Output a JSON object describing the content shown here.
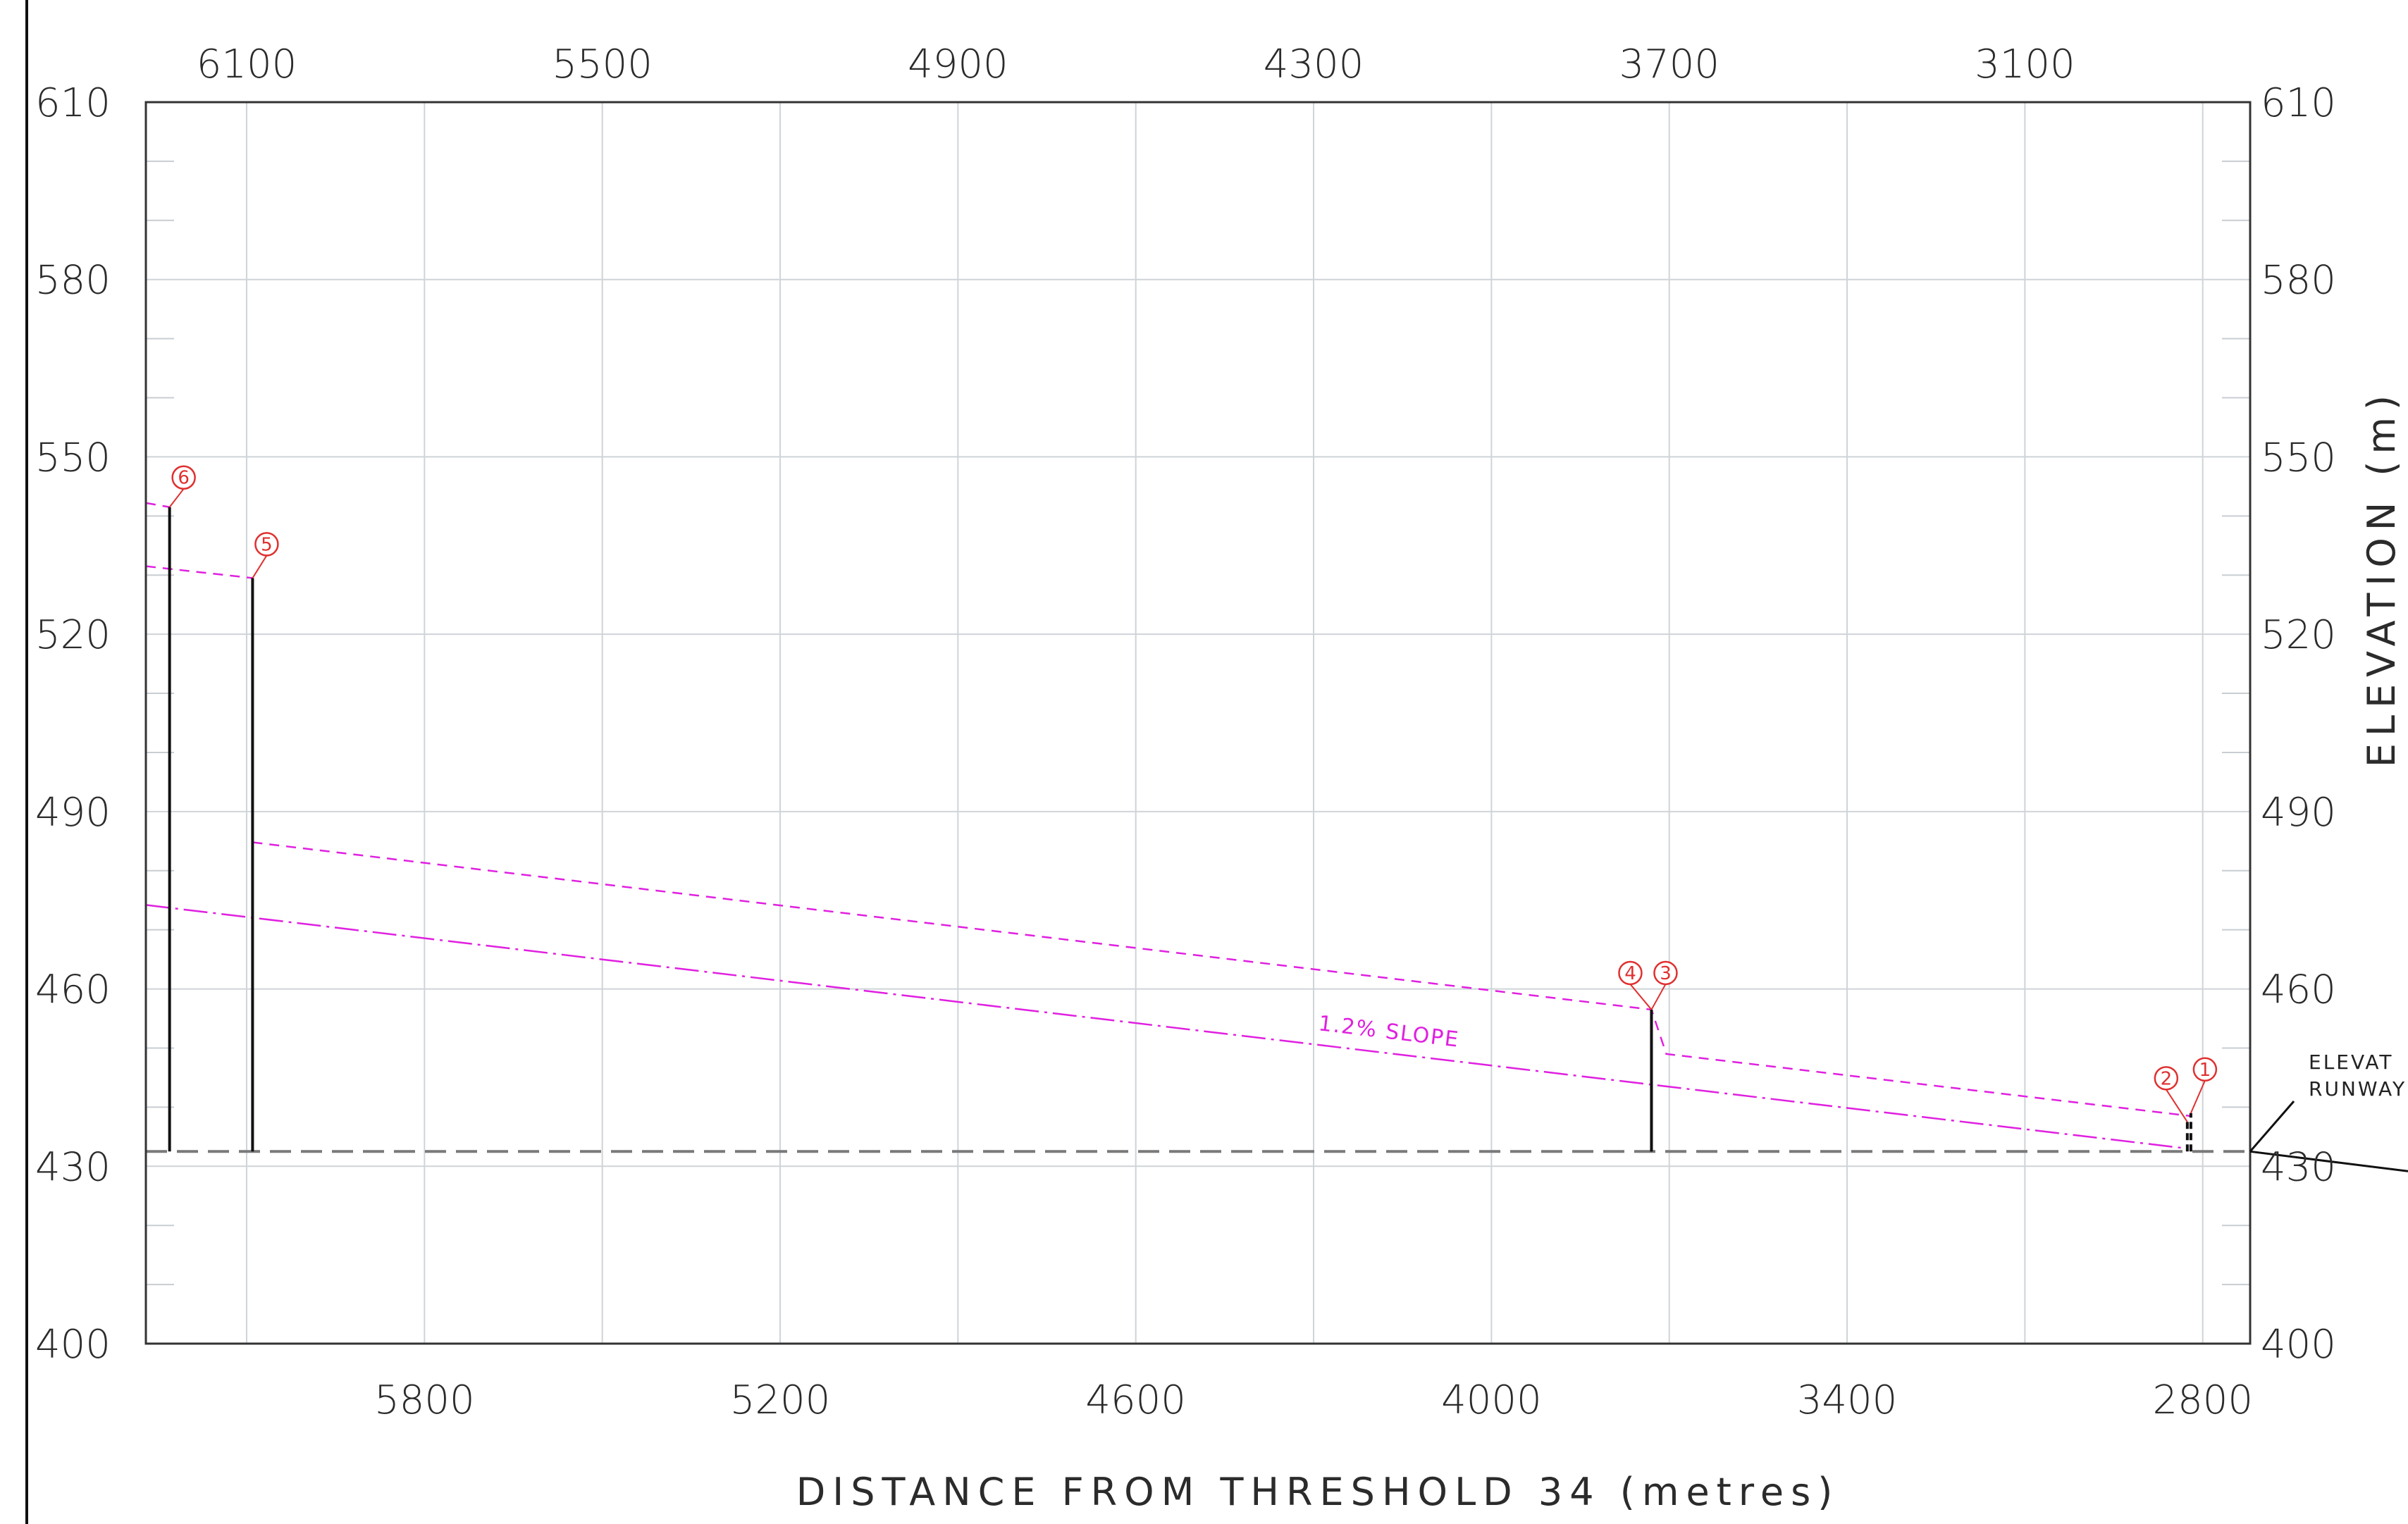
{
  "chart_data": {
    "type": "line",
    "xlabel": "DISTANCE FROM THRESHOLD 34 (metres)",
    "ylabel": "ELEVATION (m)",
    "xlim": [
      6270,
      2720
    ],
    "ylim": [
      400,
      610
    ],
    "bottom_x_ticks": [
      5800,
      5200,
      4600,
      4000,
      3400,
      2800
    ],
    "top_x_ticks": [
      6100,
      5500,
      4900,
      4300,
      3700,
      3100
    ],
    "y_ticks": [
      400,
      430,
      460,
      490,
      520,
      550,
      580,
      610
    ],
    "grid": true,
    "runway_elevation": 432.5,
    "obstacles": [
      {
        "id": "1",
        "distance": 2820,
        "top": 439,
        "base": 432.5
      },
      {
        "id": "2",
        "distance": 2826,
        "top": 437.5,
        "base": 432.5
      },
      {
        "id": "3",
        "distance": 3730,
        "top": 456.5,
        "base": 432.5
      },
      {
        "id": "4",
        "distance": 3730,
        "top": 456.5,
        "base": 432.5
      },
      {
        "id": "5",
        "distance": 6090,
        "top": 529.5,
        "base": 432.5
      },
      {
        "id": "6",
        "distance": 6230,
        "top": 541.5,
        "base": 432.5
      }
    ],
    "series": [
      {
        "name": "1.2% SLOPE",
        "style": "dash-dot",
        "color": "#e020e0",
        "x": [
          6270,
          2826
        ],
        "y": [
          474.2,
          433
        ]
      },
      {
        "style": "dashed",
        "color": "#e020e0",
        "x": [
          6090,
          3730,
          3705,
          2820
        ],
        "y": [
          484.8,
          456.5,
          449,
          438.5
        ]
      },
      {
        "style": "dashed",
        "color": "#e020e0",
        "x": [
          6270,
          6090
        ],
        "y": [
          531.5,
          529.5
        ]
      },
      {
        "style": "dashed",
        "color": "#e020e0",
        "x": [
          6270,
          6230
        ],
        "y": [
          542.2,
          541.5
        ]
      }
    ],
    "annotations": {
      "slope_label": "1.2% SLOPE",
      "elevation_note_line1": "ELEVAT",
      "elevation_note_line2": "RUNWAY"
    }
  }
}
